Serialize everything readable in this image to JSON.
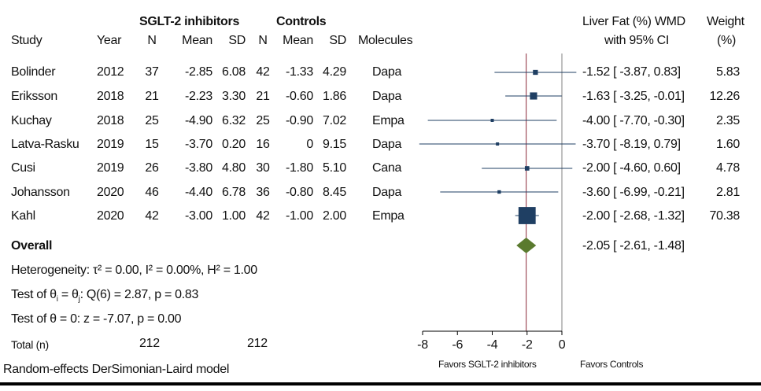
{
  "group_headers": {
    "treatment": "SGLT-2 inhibitors",
    "control": "Controls"
  },
  "columns": {
    "study": "Study",
    "year": "Year",
    "n": "N",
    "mean": "Mean",
    "sd": "SD",
    "molecules": "Molecules",
    "effect_line1": "Liver Fat (%) WMD",
    "effect_line2": "with 95% CI",
    "weight_line1": "Weight",
    "weight_line2": "(%)"
  },
  "rows": [
    {
      "study": "Bolinder",
      "year": "2012",
      "t_n": "37",
      "t_mean": "-2.85",
      "t_sd": "6.08",
      "c_n": "42",
      "c_mean": "-1.33",
      "c_sd": "4.29",
      "molecule": "Dapa",
      "effect_text": "-1.52 [ -3.87,  0.83]",
      "weight_text": "5.83"
    },
    {
      "study": "Eriksson",
      "year": "2018",
      "t_n": "21",
      "t_mean": "-2.23",
      "t_sd": "3.30",
      "c_n": "21",
      "c_mean": "-0.60",
      "c_sd": "1.86",
      "molecule": "Dapa",
      "effect_text": "-1.63 [ -3.25, -0.01]",
      "weight_text": "12.26"
    },
    {
      "study": "Kuchay",
      "year": "2018",
      "t_n": "25",
      "t_mean": "-4.90",
      "t_sd": "6.32",
      "c_n": "25",
      "c_mean": "-0.90",
      "c_sd": "7.02",
      "molecule": "Empa",
      "effect_text": "-4.00 [ -7.70, -0.30]",
      "weight_text": "2.35"
    },
    {
      "study": "Latva-Rasku",
      "year": "2019",
      "t_n": "15",
      "t_mean": "-3.70",
      "t_sd": "0.20",
      "c_n": "16",
      "c_mean": "0",
      "c_sd": "9.15",
      "molecule": "Dapa",
      "effect_text": "-3.70 [ -8.19,  0.79]",
      "weight_text": "1.60"
    },
    {
      "study": "Cusi",
      "year": "2019",
      "t_n": "26",
      "t_mean": "-3.80",
      "t_sd": "4.80",
      "c_n": "30",
      "c_mean": "-1.80",
      "c_sd": "5.10",
      "molecule": "Cana",
      "effect_text": "-2.00 [ -4.60,  0.60]",
      "weight_text": "4.78"
    },
    {
      "study": "Johansson",
      "year": "2020",
      "t_n": "46",
      "t_mean": "-4.40",
      "t_sd": "6.78",
      "c_n": "36",
      "c_mean": "-0.80",
      "c_sd": "8.45",
      "molecule": "Dapa",
      "effect_text": "-3.60 [ -6.99, -0.21]",
      "weight_text": "2.81"
    },
    {
      "study": "Kahl",
      "year": "2020",
      "t_n": "42",
      "t_mean": "-3.00",
      "t_sd": "1.00",
      "c_n": "42",
      "c_mean": "-1.00",
      "c_sd": "2.00",
      "molecule": "Empa",
      "effect_text": "-2.00 [ -2.68, -1.32]",
      "weight_text": "70.38"
    }
  ],
  "overall": {
    "label": "Overall",
    "effect_text": "-2.05 [ -2.61, -1.48]"
  },
  "stats": {
    "heterogeneity": "Heterogeneity: τ² = 0.00, I² = 0.00%, H² = 1.00",
    "test_theta_prefix": "Test of θ",
    "test_theta_sub_i": "i",
    "test_theta_mid": " = θ",
    "test_theta_sub_j": "j",
    "test_theta_suffix": ": Q(6) = 2.87, p = 0.83",
    "test_zero": "Test of θ = 0: z = -7.07, p = 0.00"
  },
  "totals": {
    "label": "Total (n)",
    "treatment": "212",
    "control": "212"
  },
  "footnote": "Random-effects DerSimonian-Laird model",
  "favors": {
    "left": "Favors SGLT-2 inhibitors",
    "right": "Favors Controls"
  },
  "colors": {
    "marker": "#1f3f63",
    "ci_line": "#1f3f63",
    "diamond": "#5a7a2e",
    "overall_line": "#8b2a3a",
    "null_line": "#808080",
    "axis": "#000000"
  },
  "chart_data": {
    "type": "forest",
    "x_axis": {
      "min": -8,
      "max": 0,
      "ticks": [
        -8,
        -6,
        -4,
        -2,
        0
      ]
    },
    "null_value": 0,
    "studies": [
      {
        "name": "Bolinder",
        "estimate": -1.52,
        "lower": -3.87,
        "upper": 0.83,
        "weight": 5.83
      },
      {
        "name": "Eriksson",
        "estimate": -1.63,
        "lower": -3.25,
        "upper": -0.01,
        "weight": 12.26
      },
      {
        "name": "Kuchay",
        "estimate": -4.0,
        "lower": -7.7,
        "upper": -0.3,
        "weight": 2.35
      },
      {
        "name": "Latva-Rasku",
        "estimate": -3.7,
        "lower": -8.19,
        "upper": 0.79,
        "weight": 1.6
      },
      {
        "name": "Cusi",
        "estimate": -2.0,
        "lower": -4.6,
        "upper": 0.6,
        "weight": 4.78
      },
      {
        "name": "Johansson",
        "estimate": -3.6,
        "lower": -6.99,
        "upper": -0.21,
        "weight": 2.81
      },
      {
        "name": "Kahl",
        "estimate": -2.0,
        "lower": -2.68,
        "upper": -1.32,
        "weight": 70.38
      }
    ],
    "overall": {
      "estimate": -2.05,
      "lower": -2.61,
      "upper": -1.48
    }
  }
}
